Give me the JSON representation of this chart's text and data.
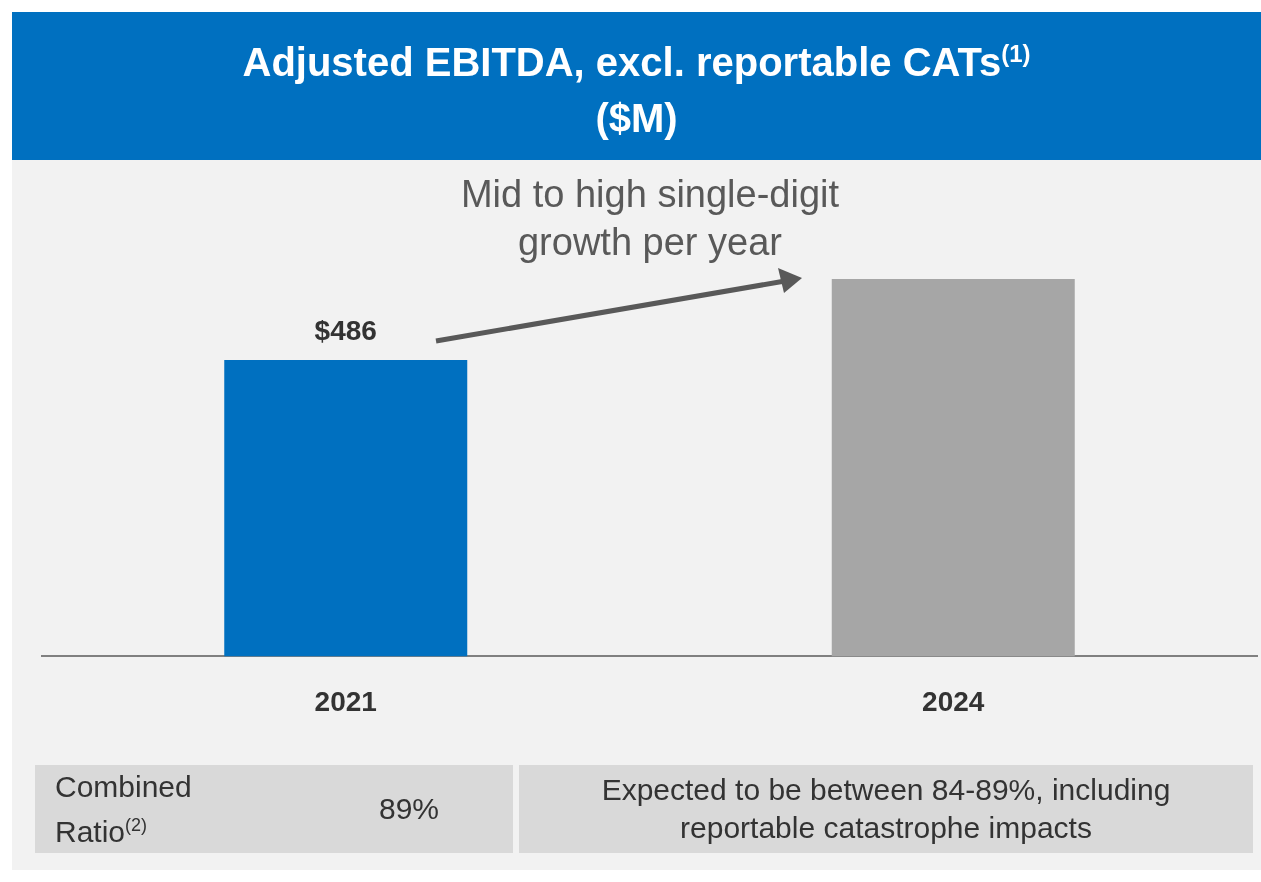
{
  "chart_data": {
    "type": "bar",
    "title": "Adjusted EBITDA, excl. reportable CATs$^{(1)}$\n($M)",
    "categories": [
      "2021",
      "2024"
    ],
    "values": [
      486,
      619
    ],
    "colors": [
      "#0070c0",
      "#a6a6a6"
    ],
    "value_labels": [
      "$486",
      null
    ],
    "annotations": [
      "Mid to high single-digit\ngrowth per year",
      "Combined\nRatio$^{(2)}$",
      "89%",
      "Expected to be between 84-89%, including\nreportable catastrophe impacts"
    ],
    "grid": false,
    "legend": false
  }
}
